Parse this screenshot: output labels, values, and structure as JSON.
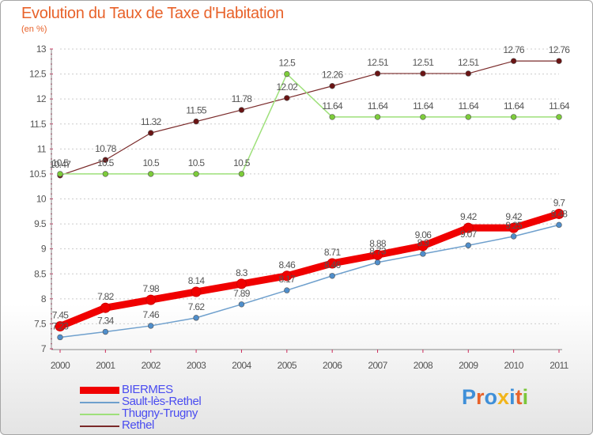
{
  "page": {
    "title": "Evolution du Taux de Taxe d'Habitation",
    "subtitle": "(en %)",
    "logo_text": "Proxiti"
  },
  "colors": {
    "title": "#e8622a",
    "axis": "#555555",
    "grid": "#cccccc",
    "legend_text": "#4a4cf0"
  },
  "chart_data": {
    "type": "line",
    "title": "Evolution du Taux de Taxe d'Habitation",
    "subtitle": "(en %)",
    "xlabel": "",
    "ylabel": "",
    "categories": [
      "2000",
      "2001",
      "2002",
      "2003",
      "2004",
      "2005",
      "2006",
      "2007",
      "2008",
      "2009",
      "2010",
      "2011"
    ],
    "ylim": [
      7,
      13
    ],
    "yticks": [
      "7",
      "7.5",
      "8",
      "8.5",
      "9",
      "9.5",
      "10",
      "10.5",
      "11",
      "11.5",
      "12",
      "12.5",
      "13"
    ],
    "grid": "horizontal dotted",
    "legend_position": "bottom-left",
    "series": [
      {
        "name": "BIERMES",
        "color": "#f00000",
        "values": [
          7.45,
          7.82,
          7.98,
          8.14,
          8.3,
          8.46,
          8.71,
          8.88,
          9.06,
          9.42,
          9.42,
          9.7
        ],
        "labels": [
          "7.45",
          "7.82",
          "7.98",
          "8.14",
          "8.3",
          "8.46",
          "8.71",
          "8.88",
          "9.06",
          "9.42",
          "9.42",
          "9.7"
        ]
      },
      {
        "name": "Sault-lès-Rethel",
        "color": "#6fa0cd",
        "marker_color": "#4f8ecb",
        "values": [
          7.23,
          7.34,
          7.46,
          7.62,
          7.89,
          8.17,
          8.46,
          8.73,
          8.9,
          9.07,
          9.25,
          9.48
        ],
        "labels": [
          "7.23",
          "7.34",
          "7.46",
          "7.62",
          "7.89",
          "8.17",
          "8.46",
          "8.73",
          "8.9",
          "9.07",
          "9.25",
          "9.48"
        ]
      },
      {
        "name": "Thugny-Trugny",
        "color": "#9ee07a",
        "marker_color": "#7dcc3a",
        "values": [
          10.5,
          10.5,
          10.5,
          10.5,
          10.5,
          12.5,
          11.64,
          11.64,
          11.64,
          11.64,
          11.64,
          11.64
        ],
        "labels": [
          "10.5",
          "10.5",
          "10.5",
          "10.5",
          "10.5",
          "12.5",
          "11.64",
          "11.64",
          "11.64",
          "11.64",
          "11.64",
          "11.64"
        ]
      },
      {
        "name": "Rethel",
        "color": "#7a2a2a",
        "marker_color": "#6a1414",
        "values": [
          10.47,
          10.78,
          11.32,
          11.55,
          11.78,
          12.02,
          12.26,
          12.51,
          12.51,
          12.51,
          12.76,
          12.76
        ],
        "labels": [
          "10.47",
          "10.78",
          "11.32",
          "11.55",
          "11.78",
          "12.02",
          "12.26",
          "12.51",
          "12.51",
          "12.51",
          "12.76",
          "12.76"
        ]
      }
    ]
  }
}
